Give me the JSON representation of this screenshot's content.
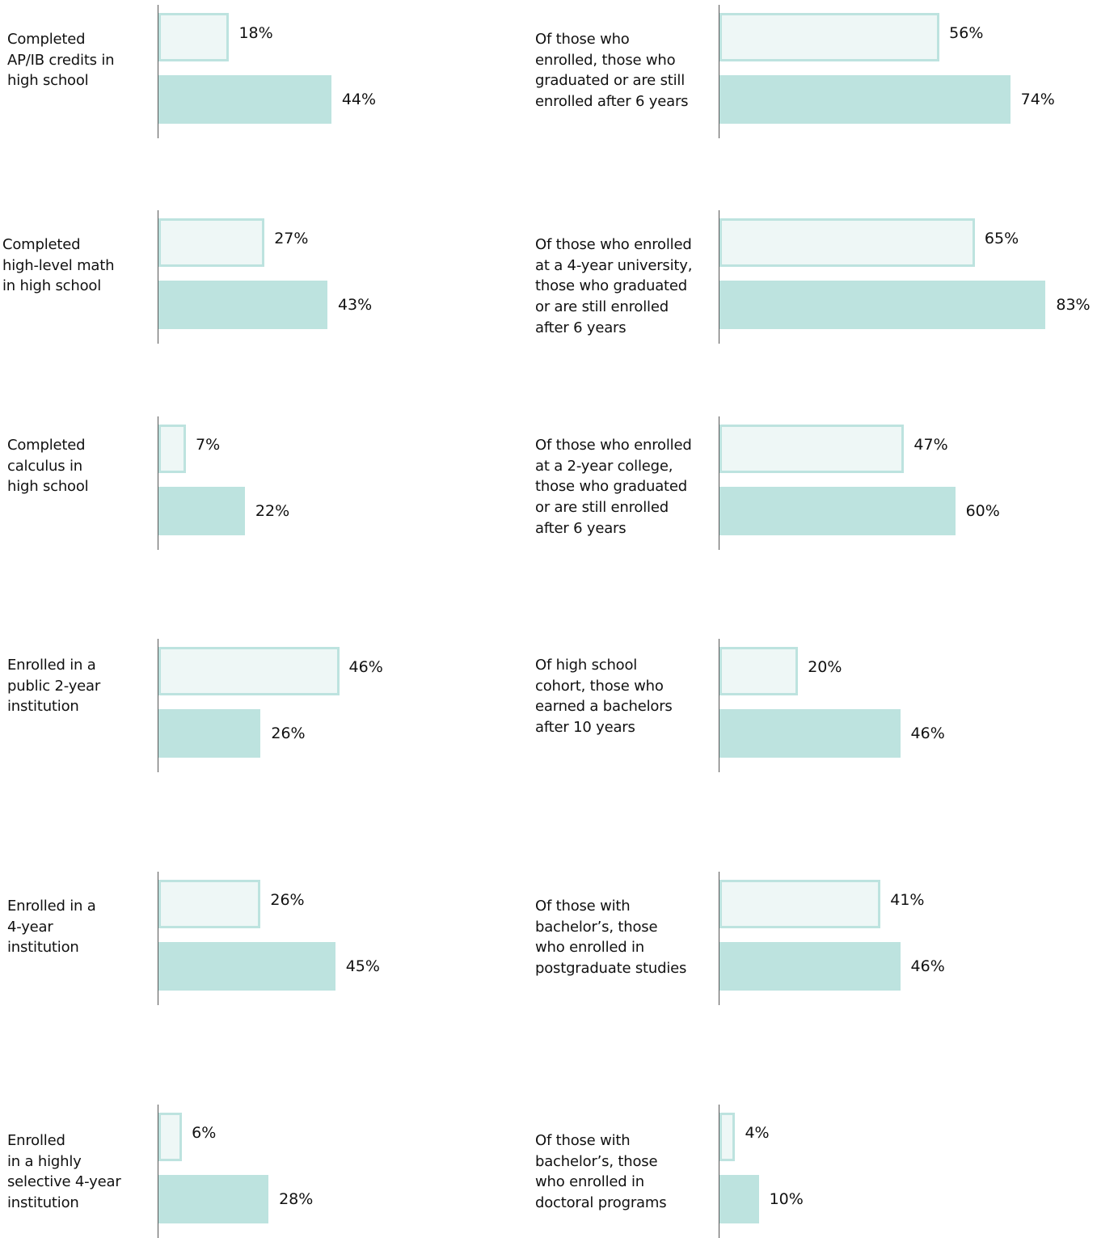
{
  "colors": {
    "outline_bar_fill": "#eef7f6",
    "outline_bar_border": "#bde3df",
    "filled_bar": "#bde3df",
    "axis": "#555555",
    "text": "#111111"
  },
  "chart_data": [
    {
      "type": "bar",
      "orientation": "horizontal",
      "label": "Completed\nAP/IB credits in\nhigh school",
      "series": [
        {
          "values": [
            18
          ]
        },
        {
          "values": [
            44
          ]
        }
      ],
      "value_labels": [
        "18%",
        "44%"
      ],
      "xlim": [
        0,
        100
      ]
    },
    {
      "type": "bar",
      "orientation": "horizontal",
      "label": "Completed\nhigh-level math\nin high school",
      "series": [
        {
          "values": [
            27
          ]
        },
        {
          "values": [
            43
          ]
        }
      ],
      "value_labels": [
        "27%",
        "43%"
      ],
      "xlim": [
        0,
        100
      ]
    },
    {
      "type": "bar",
      "orientation": "horizontal",
      "label": "Completed\ncalculus in\nhigh school",
      "series": [
        {
          "values": [
            7
          ]
        },
        {
          "values": [
            22
          ]
        }
      ],
      "value_labels": [
        "7%",
        "22%"
      ],
      "xlim": [
        0,
        100
      ]
    },
    {
      "type": "bar",
      "orientation": "horizontal",
      "label": "Enrolled in a\npublic 2-year\ninstitution",
      "series": [
        {
          "values": [
            46
          ]
        },
        {
          "values": [
            26
          ]
        }
      ],
      "value_labels": [
        "46%",
        "26%"
      ],
      "xlim": [
        0,
        100
      ]
    },
    {
      "type": "bar",
      "orientation": "horizontal",
      "label": "Enrolled in a\n4-year\ninstitution",
      "series": [
        {
          "values": [
            26
          ]
        },
        {
          "values": [
            45
          ]
        }
      ],
      "value_labels": [
        "26%",
        "45%"
      ],
      "xlim": [
        0,
        100
      ]
    },
    {
      "type": "bar",
      "orientation": "horizontal",
      "label": "Enrolled\nin a highly\nselective 4-year\ninstitution",
      "series": [
        {
          "values": [
            6
          ]
        },
        {
          "values": [
            28
          ]
        }
      ],
      "value_labels": [
        "6%",
        "28%"
      ],
      "xlim": [
        0,
        100
      ]
    },
    {
      "type": "bar",
      "orientation": "horizontal",
      "label": "Of those who\nenrolled, those who\ngraduated or are still\nenrolled after 6 years",
      "series": [
        {
          "values": [
            56
          ]
        },
        {
          "values": [
            74
          ]
        }
      ],
      "value_labels": [
        "56%",
        "74%"
      ],
      "xlim": [
        0,
        100
      ]
    },
    {
      "type": "bar",
      "orientation": "horizontal",
      "label": "Of those who enrolled\nat a 4-year university,\nthose who graduated\nor are still enrolled\nafter 6 years",
      "series": [
        {
          "values": [
            65
          ]
        },
        {
          "values": [
            83
          ]
        }
      ],
      "value_labels": [
        "65%",
        "83%"
      ],
      "xlim": [
        0,
        100
      ]
    },
    {
      "type": "bar",
      "orientation": "horizontal",
      "label": "Of those who enrolled\nat a 2-year college,\nthose who graduated\nor are still enrolled\nafter 6 years",
      "series": [
        {
          "values": [
            47
          ]
        },
        {
          "values": [
            60
          ]
        }
      ],
      "value_labels": [
        "47%",
        "60%"
      ],
      "xlim": [
        0,
        100
      ]
    },
    {
      "type": "bar",
      "orientation": "horizontal",
      "label": "Of high school\ncohort, those who\nearned a bachelors\nafter 10 years",
      "series": [
        {
          "values": [
            20
          ]
        },
        {
          "values": [
            46
          ]
        }
      ],
      "value_labels": [
        "20%",
        "46%"
      ],
      "xlim": [
        0,
        100
      ]
    },
    {
      "type": "bar",
      "orientation": "horizontal",
      "label": "Of those with\nbachelor’s, those\nwho enrolled in\npostgraduate studies",
      "series": [
        {
          "values": [
            41
          ]
        },
        {
          "values": [
            46
          ]
        }
      ],
      "value_labels": [
        "41%",
        "46%"
      ],
      "xlim": [
        0,
        100
      ]
    },
    {
      "type": "bar",
      "orientation": "horizontal",
      "label": "Of those with\nbachelor’s, those\nwho enrolled in\ndoctoral programs",
      "series": [
        {
          "values": [
            4
          ]
        },
        {
          "values": [
            10
          ]
        }
      ],
      "value_labels": [
        "4%",
        "10%"
      ],
      "xlim": [
        0,
        100
      ]
    }
  ]
}
